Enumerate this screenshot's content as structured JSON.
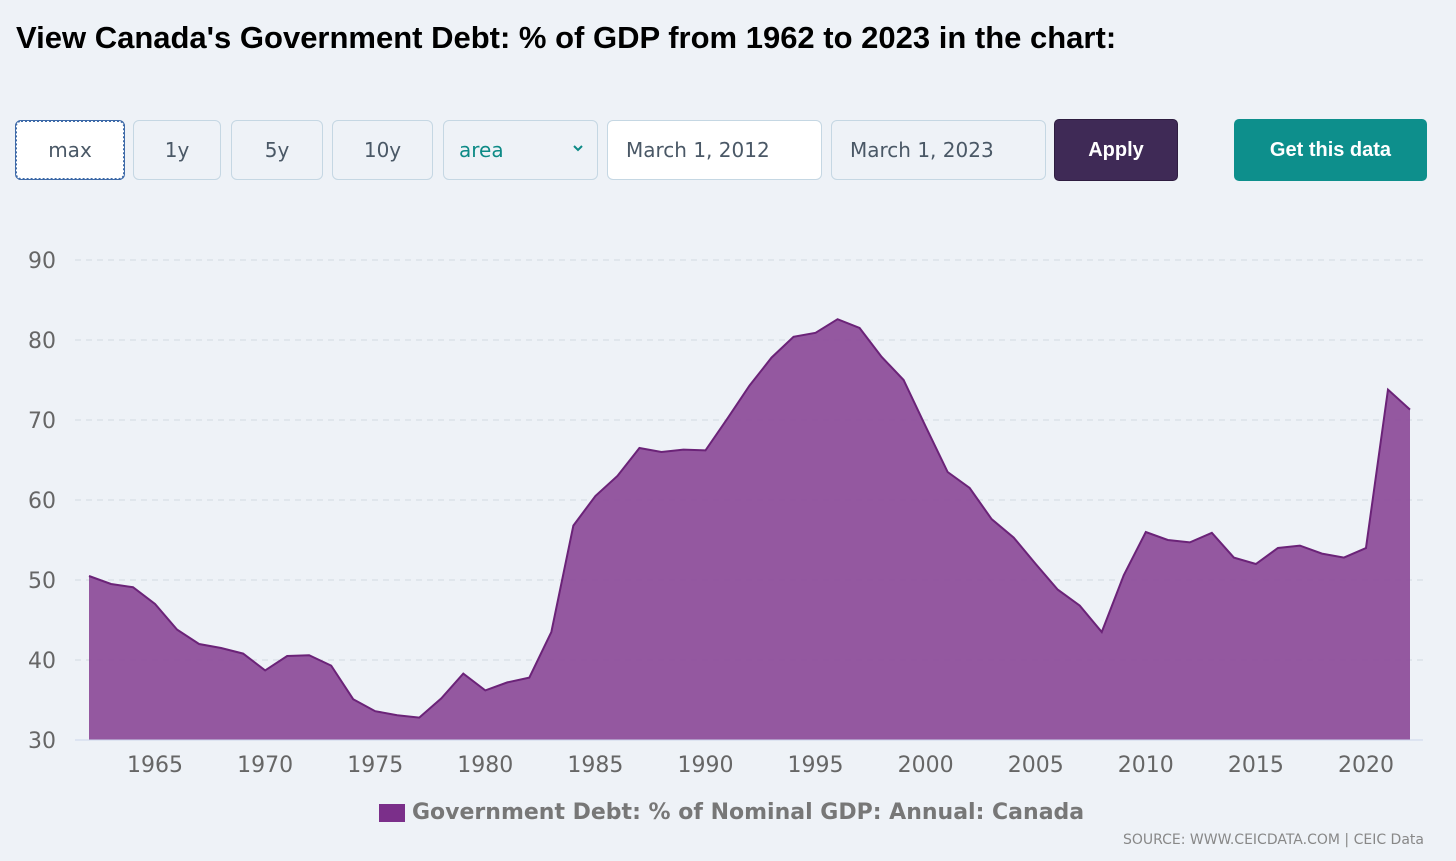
{
  "title": "View Canada's Government Debt: % of GDP from 1962 to 2023 in the chart:",
  "controls": {
    "range_buttons": [
      "max",
      "1y",
      "5y",
      "10y"
    ],
    "active_range": "max",
    "chart_type_selected": "area",
    "start_date": "March 1, 2012",
    "end_date": "March 1, 2023",
    "apply_label": "Apply",
    "get_data_label": "Get this data"
  },
  "colors": {
    "area_fill": "#8e4f9b",
    "area_stroke": "#6b2378",
    "legend_swatch": "#7b2f8a",
    "apply_bg": "#3f2a56",
    "get_data_bg": "#0d8f8c"
  },
  "source": "SOURCE: WWW.CEICDATA.COM | CEIC Data",
  "chart_data": {
    "type": "area",
    "title": "",
    "xlabel": "",
    "ylabel": "",
    "ylim": [
      30,
      90
    ],
    "yticks": [
      30,
      40,
      50,
      60,
      70,
      80,
      90
    ],
    "xticks": [
      1965,
      1970,
      1975,
      1980,
      1985,
      1990,
      1995,
      2000,
      2005,
      2010,
      2015,
      2020
    ],
    "xlim": [
      1962,
      2022
    ],
    "grid": true,
    "legend_position": "bottom",
    "x": [
      1962,
      1963,
      1964,
      1965,
      1966,
      1967,
      1968,
      1969,
      1970,
      1971,
      1972,
      1973,
      1974,
      1975,
      1976,
      1977,
      1978,
      1979,
      1980,
      1981,
      1982,
      1983,
      1984,
      1985,
      1986,
      1987,
      1988,
      1989,
      1990,
      1991,
      1992,
      1993,
      1994,
      1995,
      1996,
      1997,
      1998,
      1999,
      2000,
      2001,
      2002,
      2003,
      2004,
      2005,
      2006,
      2007,
      2008,
      2009,
      2010,
      2011,
      2012,
      2013,
      2014,
      2015,
      2016,
      2017,
      2018,
      2019,
      2020,
      2021,
      2022
    ],
    "series": [
      {
        "name": "Government Debt: % of Nominal GDP: Annual: Canada",
        "values": [
          50.5,
          49.5,
          49.1,
          47.0,
          43.8,
          42.0,
          41.5,
          40.8,
          38.7,
          40.5,
          40.6,
          39.3,
          35.1,
          33.6,
          33.1,
          32.8,
          35.2,
          38.3,
          36.2,
          37.2,
          37.8,
          43.5,
          56.8,
          60.5,
          63.0,
          66.5,
          66.0,
          66.3,
          66.2,
          70.2,
          74.3,
          77.8,
          80.4,
          80.9,
          82.6,
          81.5,
          77.9,
          75.0,
          69.2,
          63.5,
          61.5,
          57.6,
          55.3,
          52.0,
          48.8,
          46.8,
          43.5,
          50.6,
          56.0,
          55.0,
          54.7,
          55.9,
          52.8,
          52.0,
          54.0,
          54.3,
          53.3,
          52.8,
          54.0,
          73.8,
          71.3
        ]
      }
    ]
  }
}
